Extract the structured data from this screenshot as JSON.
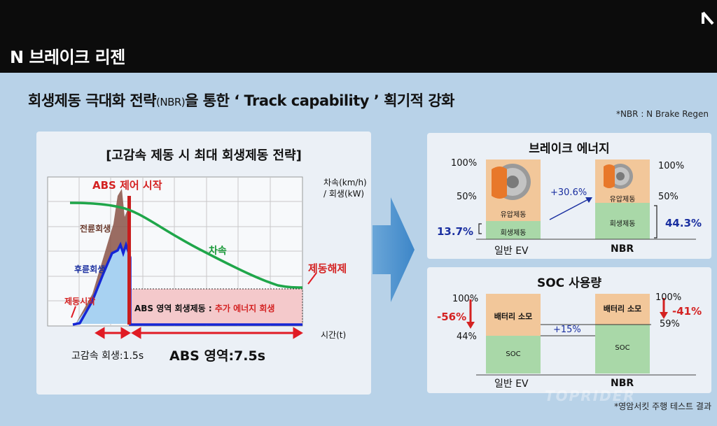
{
  "page": {
    "title": "N 브레이크 리젠",
    "headline_main": "회생제동 극대화 전략",
    "headline_small": "(NBR)",
    "headline_rest": "을 통한 ‘ Track capability ’ 획기적 강화",
    "note": "*NBR : N Brake Regen",
    "footnote": "*영암서킷 주행 테스트 결과",
    "watermark": "TOPRIDER"
  },
  "left_chart": {
    "title": "[고감속 제동 시 최대 회생제동 전략]",
    "y_label_line1": "차속(km/h)",
    "y_label_line2": "/ 회생(kW)",
    "x_label": "시간(t)",
    "abs_start": "ABS 제어 시작",
    "front_regen": "전륜회생",
    "rear_regen": "후륜회생",
    "brake_start": "제동시작",
    "speed": "차속",
    "brake_release": "제동해제",
    "abs_region_prefix": "ABS 영역  회생제동 : ",
    "abs_region_highlight": "추가 에너지 회생",
    "hs_regen": "고감속 회생:1.5s",
    "abs_zone": "ABS 영역:7.5s"
  },
  "brake_energy": {
    "title": "브레이크 에너지",
    "pct_100_left": "100%",
    "pct_50_left": "50%",
    "pct_100_right": "100%",
    "pct_50_right": "50%",
    "general_regen_pct": "13.7%",
    "nbr_regen_pct": "44.3%",
    "increase": "+30.6%",
    "hydraulic": "유압제동",
    "regen": "회생제동",
    "label_general": "일반 EV",
    "label_nbr": "NBR"
  },
  "soc_usage": {
    "title": "SOC 사용량",
    "pct_100_left": "100%",
    "pct_100_right": "100%",
    "delta_left": "-56%",
    "delta_right": "-41%",
    "level_left": "44%",
    "level_right": "59%",
    "diff": "+15%",
    "battery_consume": "배터리 소모",
    "soc": "SOC",
    "label_general": "일반 EV",
    "label_nbr": "NBR"
  },
  "colors": {
    "speed_line": "#1fa64a",
    "rear_regen": "#1526d6",
    "front_regen": "#7a4a3e",
    "abs_marker": "#c81e1e",
    "abs_region_fill": "#f4c9cb",
    "arrow_red": "#e01b24",
    "orange_box": "#f2c79a",
    "green_box": "#a9d8a8"
  }
}
